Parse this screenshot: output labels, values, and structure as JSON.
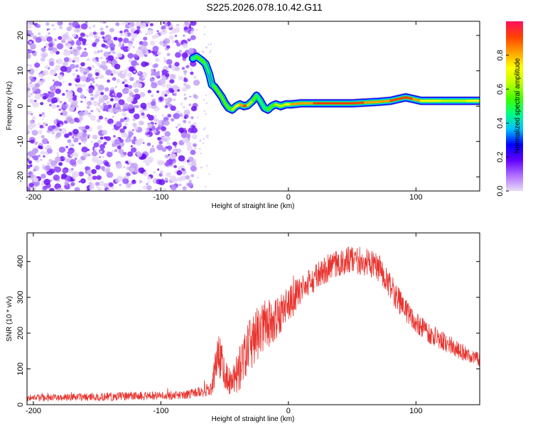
{
  "title": "S225.2026.078.10.42.G11",
  "chart_data": [
    {
      "type": "heatmap",
      "name": "spectrogram",
      "xlabel": "Height of straight line (km)",
      "ylabel": "Frequency (Hz)",
      "xlim": [
        -205,
        150
      ],
      "ylim": [
        -24,
        24
      ],
      "xticks": [
        -200,
        -100,
        0,
        100
      ],
      "yticks": [
        -20,
        -10,
        0,
        10,
        20
      ],
      "colorbar": {
        "label": "Normalized spectral amplitude",
        "range": [
          0,
          1
        ],
        "ticks": [
          "0.0",
          "0.2",
          "0.4",
          "0.6",
          "0.8"
        ],
        "colors": [
          "#e8dcf5",
          "#b070ff",
          "#6000ff",
          "#0000ff",
          "#00c0ff",
          "#00ff80",
          "#40ff00",
          "#c0ff00",
          "#ffff00",
          "#ffa000",
          "#ff4000",
          "#ff1060"
        ]
      },
      "noise_region_x": [
        -205,
        -72
      ],
      "ridge": {
        "x": [
          -75,
          -72,
          -68,
          -65,
          -62,
          -60,
          -58,
          -55,
          -52,
          -50,
          -47,
          -44,
          -41,
          -38,
          -35,
          -32,
          -28,
          -25,
          -22,
          -19,
          -16,
          -13,
          -10,
          -6,
          -2,
          2,
          10,
          20,
          30,
          40,
          50,
          60,
          70,
          80,
          86,
          92,
          98,
          104,
          110,
          120,
          130,
          140,
          150
        ],
        "y": [
          13.5,
          14,
          13,
          12,
          9,
          6,
          5.5,
          4,
          2.5,
          1,
          -0.5,
          -1,
          0,
          0.5,
          0,
          0.2,
          1.5,
          3,
          1.5,
          -0.5,
          -1,
          0,
          0.5,
          0,
          0.5,
          0.5,
          0.8,
          0.8,
          0.8,
          0.8,
          0.8,
          1,
          1.2,
          1.5,
          2,
          2.5,
          2,
          1.5,
          1.5,
          1.5,
          1.5,
          1.5,
          1.5
        ],
        "amplitude": [
          0.4,
          0.5,
          0.5,
          0.5,
          0.4,
          0.4,
          0.5,
          0.5,
          0.6,
          0.5,
          0.5,
          0.6,
          0.7,
          0.8,
          0.9,
          0.85,
          0.5,
          0.5,
          0.4,
          0.45,
          0.5,
          0.55,
          0.6,
          0.65,
          0.7,
          0.75,
          0.8,
          0.85,
          0.9,
          0.95,
          0.95,
          0.85,
          0.8,
          0.85,
          0.9,
          0.95,
          0.8,
          0.75,
          0.7,
          0.7,
          0.65,
          0.7,
          0.7
        ]
      }
    },
    {
      "type": "line",
      "name": "snr",
      "xlabel": "Height of straight line (km)",
      "ylabel": "SNR (10 * v/v)",
      "xlim": [
        -205,
        150
      ],
      "ylim": [
        0,
        480
      ],
      "xticks": [
        -200,
        -100,
        0,
        100
      ],
      "yticks": [
        0,
        100,
        200,
        300,
        400
      ],
      "color": "#e8332e",
      "envelope": {
        "x": [
          -205,
          -180,
          -150,
          -120,
          -100,
          -80,
          -70,
          -60,
          -55,
          -50,
          -45,
          -40,
          -35,
          -30,
          -25,
          -20,
          -10,
          0,
          10,
          20,
          30,
          40,
          50,
          60,
          70,
          80,
          90,
          100,
          110,
          120,
          130,
          140,
          150
        ],
        "y": [
          18,
          20,
          22,
          25,
          25,
          28,
          35,
          45,
          150,
          80,
          55,
          90,
          130,
          160,
          190,
          215,
          240,
          280,
          320,
          350,
          380,
          395,
          405,
          400,
          385,
          330,
          270,
          230,
          200,
          180,
          160,
          140,
          130
        ],
        "spread": [
          10,
          10,
          12,
          12,
          12,
          12,
          15,
          20,
          80,
          50,
          40,
          60,
          70,
          80,
          90,
          80,
          60,
          50,
          45,
          40,
          40,
          40,
          40,
          40,
          40,
          40,
          35,
          30,
          28,
          28,
          25,
          22,
          20
        ]
      }
    }
  ]
}
